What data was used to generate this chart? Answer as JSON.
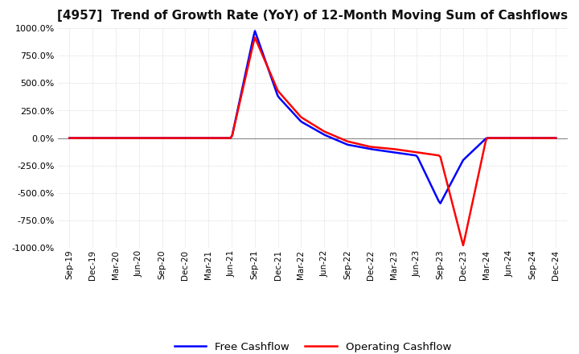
{
  "title": "[4957]  Trend of Growth Rate (YoY) of 12-Month Moving Sum of Cashflows",
  "ylim": [
    -1000,
    1000
  ],
  "yticks": [
    -1000,
    -750,
    -500,
    -250,
    0,
    250,
    500,
    750,
    1000
  ],
  "background_color": "#ffffff",
  "grid_color": "#cccccc",
  "grid_color_zero": "#888888",
  "operating_color": "#ff0000",
  "free_color": "#0000ff",
  "legend_labels": [
    "Operating Cashflow",
    "Free Cashflow"
  ],
  "x_labels": [
    "Sep-19",
    "Dec-19",
    "Mar-20",
    "Jun-20",
    "Sep-20",
    "Dec-20",
    "Mar-21",
    "Jun-21",
    "Sep-21",
    "Dec-21",
    "Mar-22",
    "Jun-22",
    "Sep-22",
    "Dec-22",
    "Mar-23",
    "Jun-23",
    "Sep-23",
    "Dec-23",
    "Mar-24",
    "Jun-24",
    "Sep-24",
    "Dec-24"
  ],
  "operating_cashflow": [
    0,
    0,
    0,
    0,
    0,
    0,
    0,
    0,
    920,
    430,
    190,
    60,
    -30,
    -80,
    -100,
    -130,
    -160,
    -980,
    0,
    0,
    0,
    0
  ],
  "free_cashflow": [
    0,
    0,
    0,
    0,
    0,
    0,
    0,
    0,
    980,
    380,
    150,
    30,
    -60,
    -100,
    -130,
    -160,
    -600,
    -200,
    0,
    0,
    0,
    0
  ]
}
